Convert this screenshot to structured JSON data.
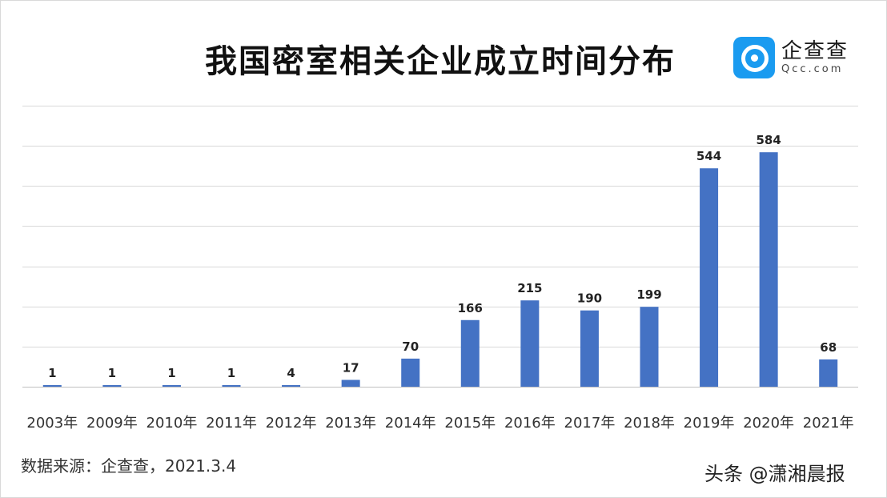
{
  "title": "我国密室相关企业成立时间分布",
  "logo": {
    "name": "企查查",
    "domain": "Qcc.com",
    "icon": "magnifier-icon",
    "color": "#1a9bf0"
  },
  "source": "数据来源：企查查，2021.3.4",
  "watermark": "头条 @潇湘晨报",
  "chart_data": {
    "type": "bar",
    "title": "我国密室相关企业成立时间分布",
    "categories": [
      "2003年",
      "2009年",
      "2010年",
      "2011年",
      "2012年",
      "2013年",
      "2014年",
      "2015年",
      "2016年",
      "2017年",
      "2018年",
      "2019年",
      "2020年",
      "2021年"
    ],
    "values": [
      1,
      1,
      1,
      1,
      4,
      17,
      70,
      166,
      215,
      190,
      199,
      544,
      584,
      68
    ],
    "data_labels": [
      "1",
      "1",
      "1",
      "1",
      "4",
      "17",
      "70",
      "166",
      "215",
      "190",
      "199",
      "544",
      "584",
      "68"
    ],
    "xlabel": "",
    "ylabel": "",
    "ylim": [
      0,
      700
    ],
    "grid": true,
    "bar_color": "#4472c4",
    "grid_color": "#d9d9d9"
  }
}
